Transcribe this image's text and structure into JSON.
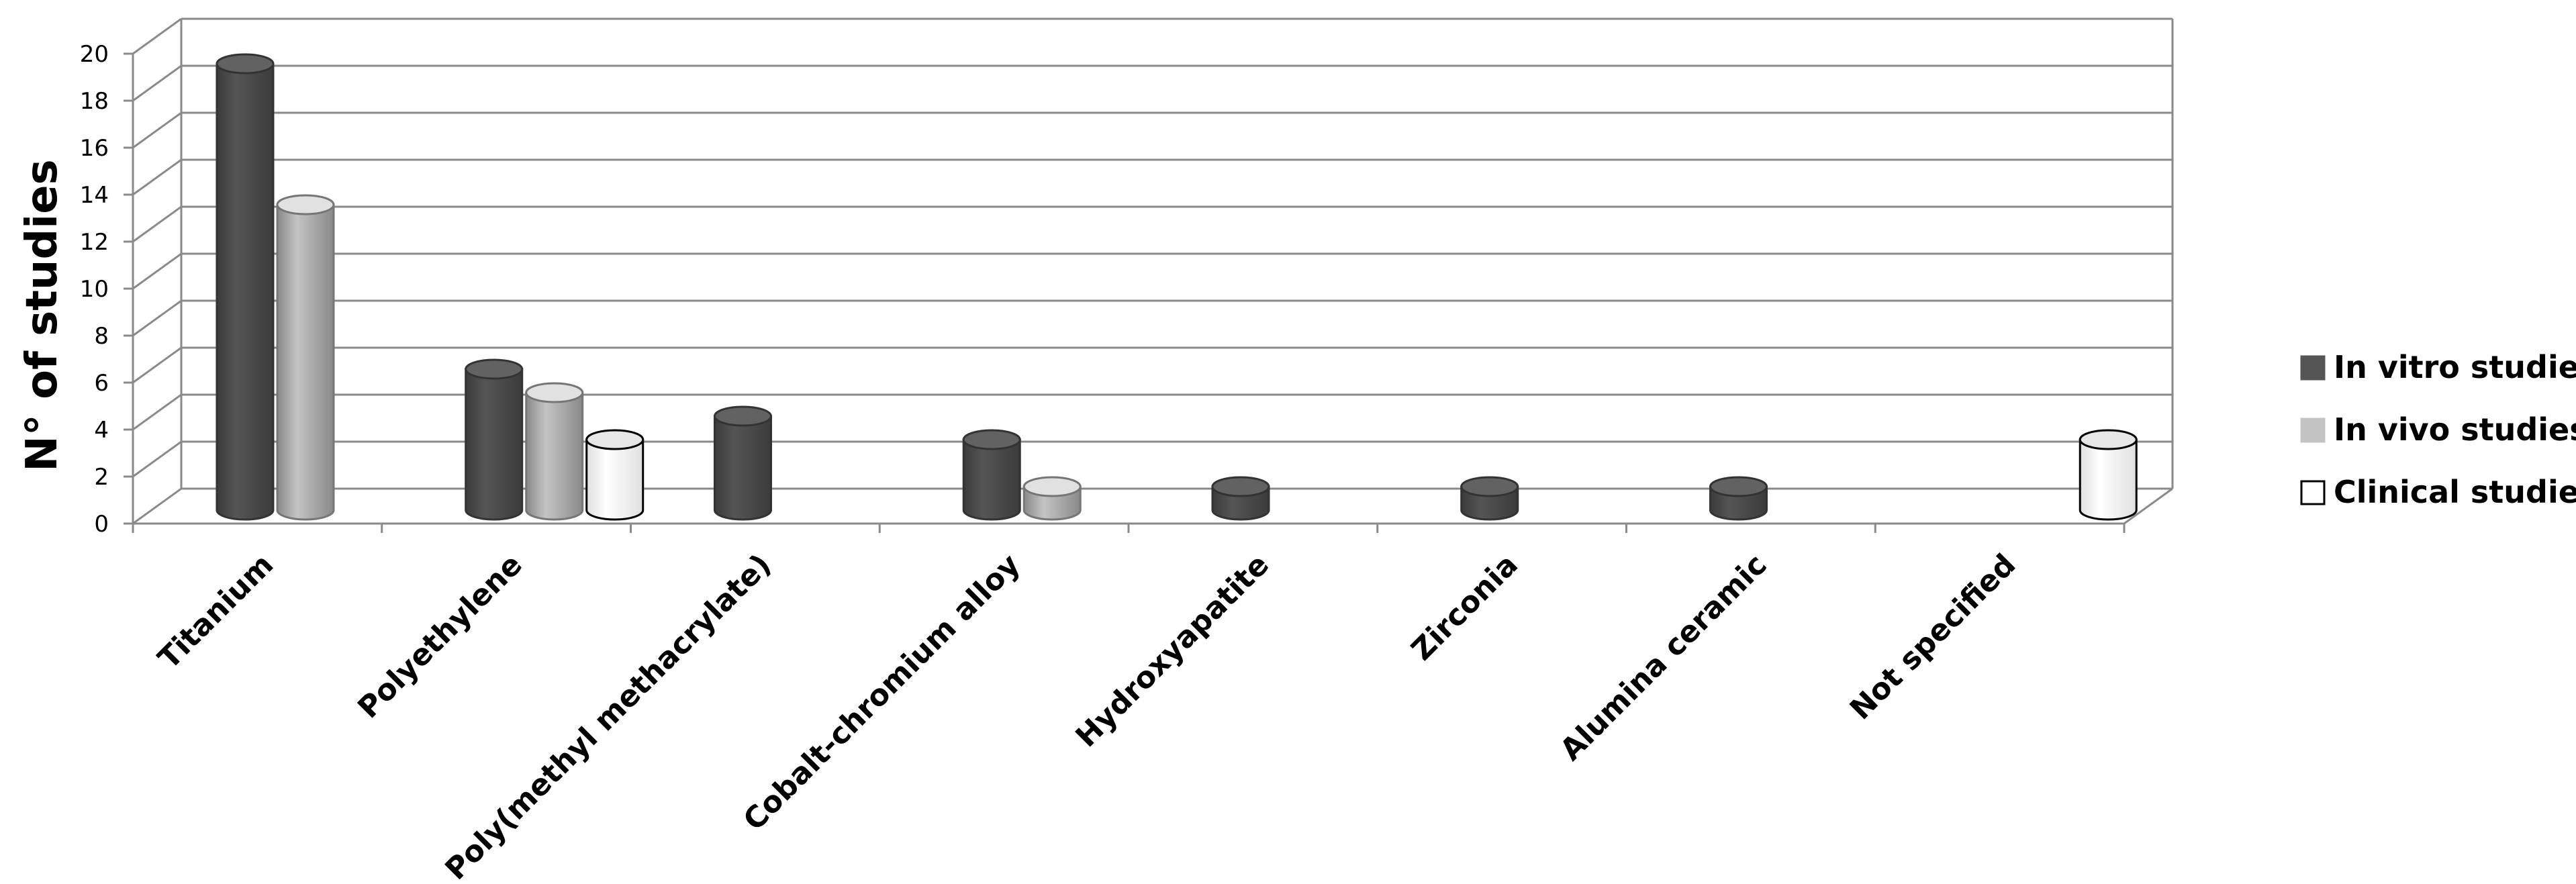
{
  "chart_data": {
    "type": "bar",
    "title": "",
    "xlabel": "",
    "ylabel": "N° of studies",
    "ylim": [
      0,
      20
    ],
    "yticks": [
      0,
      2,
      4,
      6,
      8,
      10,
      12,
      14,
      16,
      18,
      20
    ],
    "grid": true,
    "legend_position": "right",
    "categories": [
      "Titanium",
      "Polyethylene",
      "Poly(methyl methacrylate)",
      "Cobalt-chromium alloy",
      "Hydroxyapatite",
      "Zirconia",
      "Alumina ceramic",
      "Not specified"
    ],
    "series": [
      {
        "name": "In vitro studies",
        "color": "#555555",
        "values": [
          19,
          6,
          4,
          3,
          1,
          1,
          1,
          0
        ]
      },
      {
        "name": "In vivo studies",
        "color": "#c4c4c4",
        "values": [
          13,
          5,
          0,
          1,
          0,
          0,
          0,
          0
        ]
      },
      {
        "name": "Clinical studies",
        "color": "#ffffff",
        "values": [
          0,
          3,
          0,
          0,
          0,
          0,
          0,
          3
        ]
      }
    ]
  }
}
